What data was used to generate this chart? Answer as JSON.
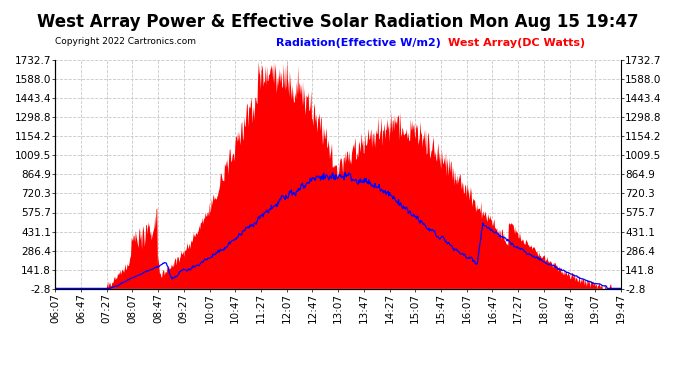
{
  "title": "West Array Power & Effective Solar Radiation Mon Aug 15 19:47",
  "copyright": "Copyright 2022 Cartronics.com",
  "legend_radiation": "Radiation(Effective W/m2)",
  "legend_westarray": "West Array(DC Watts)",
  "radiation_color": "blue",
  "westarray_color": "red",
  "ylabel_values": [
    1732.7,
    1588.0,
    1443.4,
    1298.8,
    1154.2,
    1009.5,
    864.9,
    720.3,
    575.7,
    431.1,
    286.4,
    141.8,
    -2.8
  ],
  "ymin": -2.8,
  "ymax": 1732.7,
  "background_color": "#ffffff",
  "grid_color": "#c8c8c8",
  "plot_bg": "#ffffff",
  "x_labels": [
    "06:07",
    "06:47",
    "07:27",
    "08:07",
    "08:47",
    "09:27",
    "10:07",
    "10:47",
    "11:27",
    "12:07",
    "12:47",
    "13:07",
    "13:47",
    "14:27",
    "15:07",
    "15:47",
    "16:07",
    "16:47",
    "17:27",
    "18:07",
    "18:47",
    "19:07",
    "19:47"
  ],
  "title_fontsize": 12,
  "tick_fontsize": 7.5
}
